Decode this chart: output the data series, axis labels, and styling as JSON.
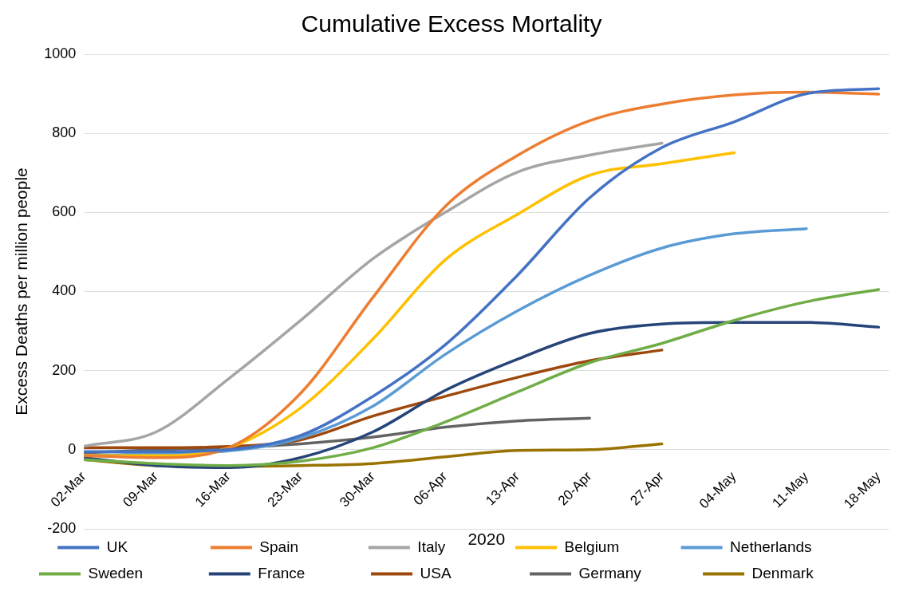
{
  "chart_data": {
    "type": "line",
    "title": "Cumulative Excess Mortality",
    "xlabel": "2020",
    "ylabel": "Excess Deaths per million people",
    "x": [
      "2020-03-02",
      "2020-03-09",
      "2020-03-16",
      "2020-03-23",
      "2020-03-30",
      "2020-04-06",
      "2020-04-13",
      "2020-04-20",
      "2020-04-27",
      "2020-05-04",
      "2020-05-11",
      "2020-05-18"
    ],
    "series": [
      {
        "name": "UK",
        "color": "#4472c4",
        "values": [
          -5,
          -5,
          0,
          36,
          135,
          265,
          441,
          637,
          764,
          829,
          900,
          913
        ]
      },
      {
        "name": "Spain",
        "color": "#ed7d31",
        "values": [
          -15,
          -20,
          5,
          143,
          385,
          615,
          744,
          832,
          874,
          897,
          904,
          899
        ]
      },
      {
        "name": "Italy",
        "color": "#a5a5a5",
        "values": [
          9,
          45,
          179,
          327,
          483,
          600,
          702,
          745,
          775,
          null,
          null,
          null
        ]
      },
      {
        "name": "Belgium",
        "color": "#ffc000",
        "values": [
          -15,
          -15,
          5,
          106,
          280,
          480,
          595,
          694,
          723,
          751,
          null,
          null
        ]
      },
      {
        "name": "Netherlands",
        "color": "#5b9bd5",
        "values": [
          -15,
          -10,
          -3,
          30,
          110,
          241,
          351,
          441,
          510,
          546,
          559,
          null
        ]
      },
      {
        "name": "Sweden",
        "color": "#70ad47",
        "values": [
          -25,
          -35,
          -40,
          -29,
          5,
          70,
          146,
          220,
          269,
          327,
          374,
          405
        ]
      },
      {
        "name": "France",
        "color": "#264478",
        "values": [
          -20,
          -40,
          -45,
          -20,
          45,
          150,
          229,
          294,
          318,
          322,
          322,
          310
        ]
      },
      {
        "name": "USA",
        "color": "#9e480e",
        "values": [
          5,
          5,
          8,
          25,
          85,
          135,
          183,
          225,
          252,
          null,
          null,
          null
        ]
      },
      {
        "name": "Germany",
        "color": "#636363",
        "values": [
          -8,
          0,
          5,
          15,
          32,
          57,
          73,
          80,
          null,
          null,
          null,
          null
        ]
      },
      {
        "name": "Denmark",
        "color": "#997300",
        "values": [
          -25,
          -40,
          -42,
          -40,
          -35,
          -18,
          -2,
          0,
          15,
          null,
          null,
          null
        ]
      }
    ],
    "xlim": [
      "2020-03-02",
      "2020-05-19"
    ],
    "xticks": [
      {
        "value": "2020-03-02",
        "label": "02-Mar"
      },
      {
        "value": "2020-03-09",
        "label": "09-Mar"
      },
      {
        "value": "2020-03-16",
        "label": "16-Mar"
      },
      {
        "value": "2020-03-23",
        "label": "23-Mar"
      },
      {
        "value": "2020-03-30",
        "label": "30-Mar"
      },
      {
        "value": "2020-04-06",
        "label": "06-Apr"
      },
      {
        "value": "2020-04-13",
        "label": "13-Apr"
      },
      {
        "value": "2020-04-20",
        "label": "20-Apr"
      },
      {
        "value": "2020-04-27",
        "label": "27-Apr"
      },
      {
        "value": "2020-05-04",
        "label": "04-May"
      },
      {
        "value": "2020-05-11",
        "label": "11-May"
      },
      {
        "value": "2020-05-18",
        "label": "18-May"
      }
    ],
    "ylim": [
      -200,
      1000
    ],
    "yticks": [
      -200,
      0,
      200,
      400,
      600,
      800,
      1000
    ],
    "grid": "y",
    "legend": "bottom",
    "marker": "none",
    "line_style": "solid"
  }
}
